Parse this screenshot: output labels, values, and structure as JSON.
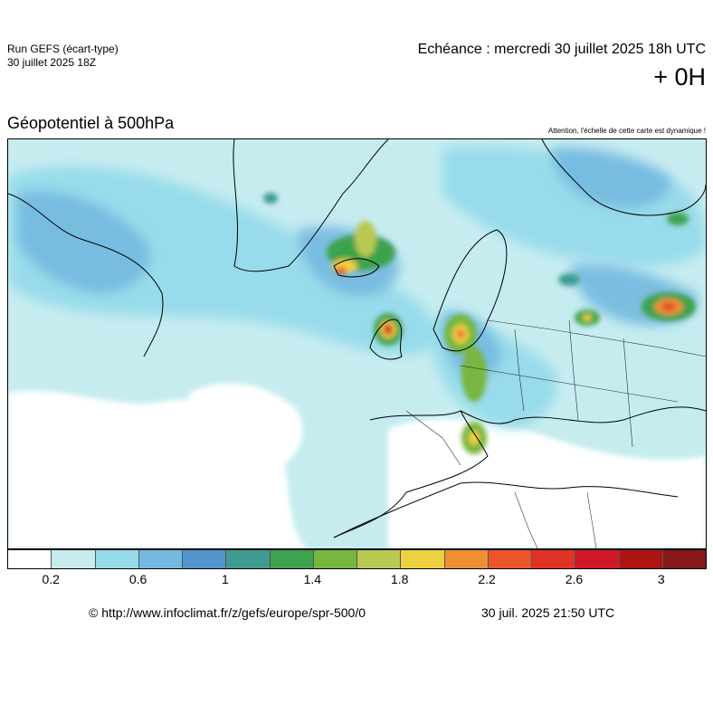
{
  "header": {
    "run_title": "Run GEFS (écart-type)",
    "run_date": "30 juillet 2025 18Z",
    "echeance": "Echéance : mercredi 30 juillet 2025 18h UTC",
    "offset": "+ 0H"
  },
  "map": {
    "title": "Géopotentiel à 500hPa",
    "note": "Attention, l'échelle de cette carte est dynamique !"
  },
  "legend": {
    "colors": [
      "#ffffff",
      "#c6ecf0",
      "#96dbea",
      "#74b9e0",
      "#5195cc",
      "#3f9b90",
      "#3ea24e",
      "#77b63f",
      "#b9c952",
      "#eed043",
      "#ef8f33",
      "#ec5528",
      "#df3425",
      "#d1182a",
      "#ad1414",
      "#861919"
    ],
    "ticks": [
      "0.2",
      "0.6",
      "1",
      "1.4",
      "1.8",
      "2.2",
      "2.6",
      "3"
    ]
  },
  "footer": {
    "url": "© http://www.infoclimat.fr/z/gefs/europe/spr-500/0",
    "timestamp": "30 juil. 2025 21:50 UTC"
  }
}
